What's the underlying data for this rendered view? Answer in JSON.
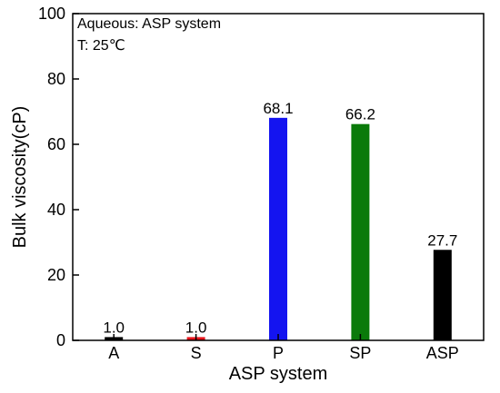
{
  "chart_data": {
    "type": "bar",
    "categories": [
      "A",
      "S",
      "P",
      "SP",
      "ASP"
    ],
    "values": [
      1.0,
      1.0,
      68.1,
      66.2,
      27.7
    ],
    "data_labels": [
      "1.0",
      "1.0",
      "68.1",
      "66.2",
      "27.7"
    ],
    "colors": [
      "#000000",
      "#e8141c",
      "#1414f0",
      "#0a7a0a",
      "#000000"
    ],
    "xlabel": "ASP system",
    "ylabel": "Bulk viscosity(cP)",
    "ylim": [
      0,
      100
    ],
    "yticks": [
      0,
      20,
      40,
      60,
      80,
      100
    ],
    "annotations": [
      "Aqueous: ASP system",
      "T: 25℃"
    ],
    "grid": false
  }
}
